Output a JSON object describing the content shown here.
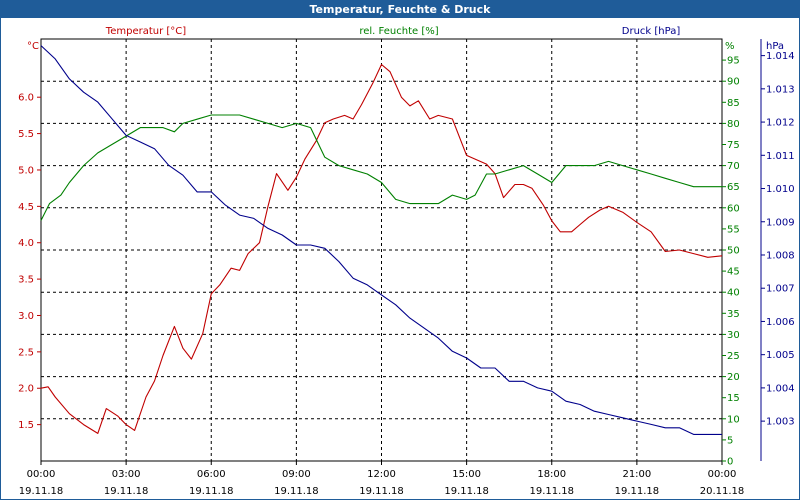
{
  "window": {
    "title": "Temperatur, Feuchte & Druck"
  },
  "colors": {
    "temperature": "#c00000",
    "humidity": "#008000",
    "pressure": "#00008b",
    "titlebar": "#1f5c99",
    "grid": "#000000"
  },
  "chart_data": {
    "type": "line",
    "title": "Temperatur, Feuchte & Druck",
    "grid": true,
    "x_axis": {
      "range": [
        "19.11.18 00:00",
        "20.11.18 00:00"
      ],
      "tick_times": [
        "00:00",
        "03:00",
        "06:00",
        "09:00",
        "12:00",
        "15:00",
        "18:00",
        "21:00",
        "00:00"
      ],
      "tick_dates": [
        "19.11.18",
        "19.11.18",
        "19.11.18",
        "19.11.18",
        "19.11.18",
        "19.11.18",
        "19.11.18",
        "19.11.18",
        "20.11.18"
      ]
    },
    "axes": {
      "temperature": {
        "unit": "°C",
        "ylim": [
          1.0,
          6.8
        ],
        "ticks": [
          "1.5",
          "2.0",
          "2.5",
          "3.0",
          "3.5",
          "4.0",
          "4.5",
          "5.0",
          "5.5",
          "6.0"
        ]
      },
      "humidity": {
        "unit": "%",
        "ylim": [
          0,
          100
        ],
        "ticks": [
          "0",
          "5",
          "10",
          "15",
          "20",
          "25",
          "30",
          "35",
          "40",
          "45",
          "50",
          "55",
          "60",
          "65",
          "70",
          "75",
          "80",
          "85",
          "90",
          "95"
        ]
      },
      "pressure": {
        "unit": "hPa",
        "ylim": [
          1.0018,
          1.0145
        ],
        "ticks": [
          "1.003",
          "1.004",
          "1.005",
          "1.006",
          "1.007",
          "1.008",
          "1.009",
          "1.010",
          "1.011",
          "1.012",
          "1.013",
          "1.014"
        ]
      }
    },
    "series": [
      {
        "name": "Temperatur [°C]",
        "axis": "temperature",
        "x": [
          0,
          0.25,
          0.5,
          1,
          1.5,
          2,
          2.3,
          2.7,
          3,
          3.3,
          3.7,
          4,
          4.3,
          4.7,
          5,
          5.3,
          5.7,
          6,
          6.3,
          6.7,
          7,
          7.3,
          7.7,
          8,
          8.3,
          8.7,
          9,
          9.3,
          9.7,
          10,
          10.3,
          10.7,
          11,
          11.3,
          11.7,
          12,
          12.3,
          12.7,
          13,
          13.3,
          13.7,
          14,
          14.5,
          15,
          15.3,
          15.7,
          16,
          16.3,
          16.7,
          17,
          17.3,
          17.7,
          18,
          18.3,
          18.7,
          19,
          19.3,
          19.7,
          20,
          20.5,
          21,
          21.5,
          22,
          22.5,
          23,
          23.5,
          24
        ],
        "values": [
          2.0,
          2.02,
          1.88,
          1.65,
          1.5,
          1.38,
          1.72,
          1.62,
          1.5,
          1.42,
          1.88,
          2.1,
          2.45,
          2.85,
          2.55,
          2.4,
          2.75,
          3.3,
          3.42,
          3.65,
          3.62,
          3.85,
          4.0,
          4.5,
          4.95,
          4.72,
          4.9,
          5.15,
          5.4,
          5.65,
          5.7,
          5.75,
          5.7,
          5.9,
          6.2,
          6.45,
          6.35,
          6.0,
          5.88,
          5.95,
          5.7,
          5.75,
          5.7,
          5.2,
          5.15,
          5.08,
          4.95,
          4.62,
          4.8,
          4.8,
          4.75,
          4.52,
          4.3,
          4.15,
          4.15,
          4.25,
          4.35,
          4.45,
          4.5,
          4.42,
          4.28,
          4.15,
          3.88,
          3.9,
          3.85,
          3.8,
          3.82
        ]
      },
      {
        "name": "rel. Feuchte [%]",
        "axis": "humidity",
        "x": [
          0,
          0.3,
          0.7,
          1,
          1.5,
          2,
          2.5,
          3,
          3.5,
          4,
          4.3,
          4.7,
          5,
          5.5,
          6,
          6.5,
          7,
          7.5,
          8,
          8.5,
          9,
          9.5,
          10,
          10.5,
          11,
          11.5,
          12,
          12.5,
          13,
          13.5,
          14,
          14.5,
          15,
          15.3,
          15.7,
          16,
          16.5,
          17,
          17.5,
          18,
          18.5,
          19,
          19.5,
          20,
          20.5,
          21,
          21.5,
          22,
          22.5,
          23,
          23.5,
          24
        ],
        "values": [
          57,
          61,
          63,
          66,
          70,
          73,
          75,
          77,
          79,
          79,
          79,
          78,
          80,
          81,
          82,
          82,
          82,
          81,
          80,
          79,
          80,
          79,
          72,
          70,
          69,
          68,
          66,
          62,
          61,
          61,
          61,
          63,
          62,
          63,
          68,
          68,
          69,
          70,
          68,
          66,
          70,
          70,
          70,
          71,
          70,
          69,
          68,
          67,
          66,
          65,
          65,
          65
        ]
      },
      {
        "name": "Druck [hPa]",
        "axis": "pressure",
        "x": [
          0,
          0.5,
          1,
          1.5,
          2,
          2.5,
          3,
          3.5,
          4,
          4.5,
          5,
          5.5,
          6,
          6.5,
          7,
          7.5,
          8,
          8.5,
          9,
          9.5,
          10,
          10.5,
          11,
          11.5,
          12,
          12.5,
          13,
          13.5,
          14,
          14.5,
          15,
          15.5,
          16,
          16.5,
          17,
          17.5,
          18,
          18.5,
          19,
          19.5,
          20,
          20.5,
          21,
          21.5,
          22,
          22.5,
          23,
          23.5,
          24
        ],
        "values": [
          1.0143,
          1.0139,
          1.0133,
          1.0129,
          1.0126,
          1.0121,
          1.0116,
          1.0114,
          1.0112,
          1.0107,
          1.0104,
          1.0099,
          1.0099,
          1.0095,
          1.0092,
          1.0091,
          1.0088,
          1.0086,
          1.0083,
          1.0083,
          1.0082,
          1.0078,
          1.0073,
          1.0071,
          1.0068,
          1.0065,
          1.0061,
          1.0058,
          1.0055,
          1.0051,
          1.0049,
          1.0046,
          1.0046,
          1.0042,
          1.0042,
          1.004,
          1.0039,
          1.0036,
          1.0035,
          1.0033,
          1.0032,
          1.0031,
          1.003,
          1.0029,
          1.0028,
          1.0028,
          1.0026,
          1.0026,
          1.0026
        ]
      }
    ]
  }
}
